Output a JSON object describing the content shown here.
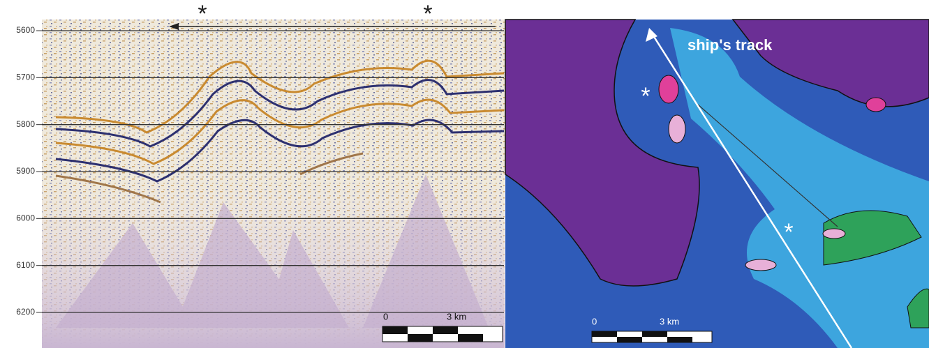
{
  "seismic_profile": {
    "depth_ticks": [
      5600,
      5700,
      5800,
      5900,
      6000,
      6100,
      6200
    ],
    "markers": [
      "*",
      "*"
    ],
    "scale_bar": {
      "start": "0",
      "end": "3 km"
    }
  },
  "bathymetry_map": {
    "track_label": "ship's track",
    "markers": [
      "*",
      "*"
    ],
    "scale_bar": {
      "start": "0",
      "end": "3 km"
    }
  }
}
